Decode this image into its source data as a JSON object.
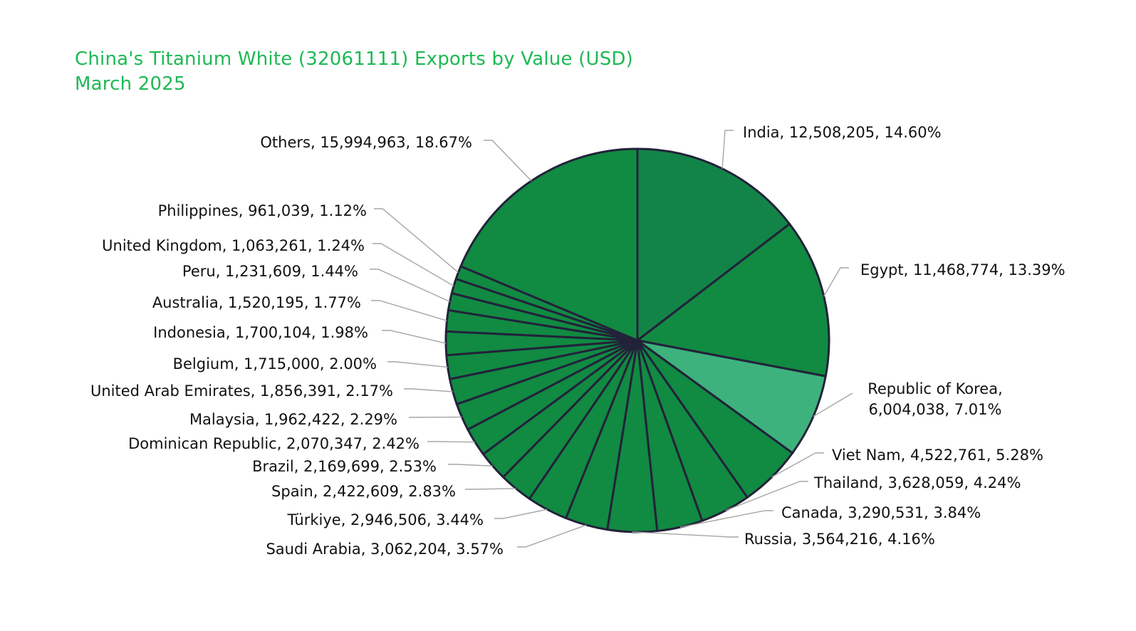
{
  "title": {
    "line1": "China's Titanium White (32061111) Exports by Value (USD)",
    "line2": "March 2025"
  },
  "colors": {
    "title": "#1db954",
    "slice_default": "#118a42",
    "slice_india": "#138447",
    "slice_korea": "#3db27d",
    "border": "#22223a",
    "leader": "#a6a6a6"
  },
  "chart_data": {
    "type": "pie",
    "title": "China's Titanium White (32061111) Exports by Value (USD) March 2025",
    "start_angle": "12 o'clock",
    "direction": "clockwise",
    "slices": [
      {
        "name": "India",
        "value": 12508205,
        "percent": 14.6,
        "label": "India, 12,508,205, 14.60%",
        "color": "#138447"
      },
      {
        "name": "Egypt",
        "value": 11468774,
        "percent": 13.39,
        "label": "Egypt, 11,468,774, 13.39%",
        "color": "#118a42"
      },
      {
        "name": "Republic of Korea",
        "value": 6004038,
        "percent": 7.01,
        "label": "Republic of Korea,|6,004,038, 7.01%",
        "color": "#3db27d"
      },
      {
        "name": "Viet Nam",
        "value": 4522761,
        "percent": 5.28,
        "label": "Viet Nam, 4,522,761, 5.28%",
        "color": "#118a42"
      },
      {
        "name": "Thailand",
        "value": 3628059,
        "percent": 4.24,
        "label": "Thailand, 3,628,059, 4.24%",
        "color": "#118a42"
      },
      {
        "name": "Canada",
        "value": 3290531,
        "percent": 3.84,
        "label": "Canada, 3,290,531, 3.84%",
        "color": "#118a42"
      },
      {
        "name": "Russia",
        "value": 3564216,
        "percent": 4.16,
        "label": "Russia, 3,564,216, 4.16%",
        "color": "#118a42"
      },
      {
        "name": "Saudi Arabia",
        "value": 3062204,
        "percent": 3.57,
        "label": "Saudi Arabia, 3,062,204, 3.57%",
        "color": "#118a42"
      },
      {
        "name": "Türkiye",
        "value": 2946506,
        "percent": 3.44,
        "label": "Türkiye, 2,946,506, 3.44%",
        "color": "#118a42"
      },
      {
        "name": "Spain",
        "value": 2422609,
        "percent": 2.83,
        "label": "Spain, 2,422,609, 2.83%",
        "color": "#118a42"
      },
      {
        "name": "Brazil",
        "value": 2169699,
        "percent": 2.53,
        "label": "Brazil, 2,169,699, 2.53%",
        "color": "#118a42"
      },
      {
        "name": "Dominican Republic",
        "value": 2070347,
        "percent": 2.42,
        "label": "Dominican Republic, 2,070,347, 2.42%",
        "color": "#118a42"
      },
      {
        "name": "Malaysia",
        "value": 1962422,
        "percent": 2.29,
        "label": "Malaysia, 1,962,422, 2.29%",
        "color": "#118a42"
      },
      {
        "name": "United Arab Emirates",
        "value": 1856391,
        "percent": 2.17,
        "label": "United Arab Emirates, 1,856,391, 2.17%",
        "color": "#118a42"
      },
      {
        "name": "Belgium",
        "value": 1715000,
        "percent": 2.0,
        "label": "Belgium, 1,715,000, 2.00%",
        "color": "#118a42"
      },
      {
        "name": "Indonesia",
        "value": 1700104,
        "percent": 1.98,
        "label": "Indonesia, 1,700,104, 1.98%",
        "color": "#118a42"
      },
      {
        "name": "Australia",
        "value": 1520195,
        "percent": 1.77,
        "label": "Australia, 1,520,195, 1.77%",
        "color": "#118a42"
      },
      {
        "name": "Peru",
        "value": 1231609,
        "percent": 1.44,
        "label": "Peru, 1,231,609, 1.44%",
        "color": "#118a42"
      },
      {
        "name": "United Kingdom",
        "value": 1063261,
        "percent": 1.24,
        "label": "United Kingdom, 1,063,261, 1.24%",
        "color": "#118a42"
      },
      {
        "name": "Philippines",
        "value": 961039,
        "percent": 1.12,
        "label": "Philippines, 961,039, 1.12%",
        "color": "#118a42"
      },
      {
        "name": "Others",
        "value": 15994963,
        "percent": 18.67,
        "label": "Others, 15,994,963, 18.67%",
        "color": "#118a42"
      }
    ]
  }
}
